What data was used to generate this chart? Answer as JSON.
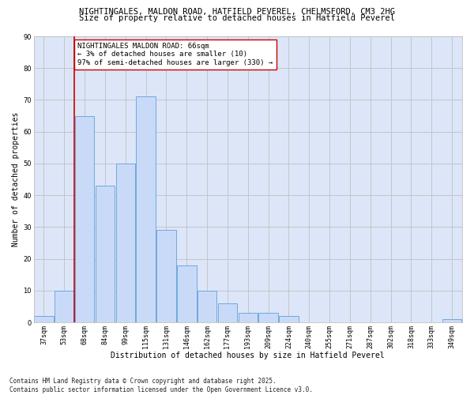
{
  "title_line1": "NIGHTINGALES, MALDON ROAD, HATFIELD PEVEREL, CHELMSFORD, CM3 2HG",
  "title_line2": "Size of property relative to detached houses in Hatfield Peverel",
  "xlabel": "Distribution of detached houses by size in Hatfield Peverel",
  "ylabel": "Number of detached properties",
  "categories": [
    "37sqm",
    "53sqm",
    "68sqm",
    "84sqm",
    "99sqm",
    "115sqm",
    "131sqm",
    "146sqm",
    "162sqm",
    "177sqm",
    "193sqm",
    "209sqm",
    "224sqm",
    "240sqm",
    "255sqm",
    "271sqm",
    "287sqm",
    "302sqm",
    "318sqm",
    "333sqm",
    "349sqm"
  ],
  "values": [
    2,
    10,
    65,
    43,
    50,
    71,
    29,
    18,
    10,
    6,
    3,
    3,
    2,
    0,
    0,
    0,
    0,
    0,
    0,
    0,
    1
  ],
  "bar_color": "#c9daf8",
  "bar_edge_color": "#6fa8dc",
  "vline_color": "#cc0000",
  "annotation_text": "NIGHTINGALES MALDON ROAD: 66sqm\n← 3% of detached houses are smaller (10)\n97% of semi-detached houses are larger (330) →",
  "annotation_box_color": "#ffffff",
  "annotation_box_edge": "#cc0000",
  "ylim": [
    0,
    90
  ],
  "yticks": [
    0,
    10,
    20,
    30,
    40,
    50,
    60,
    70,
    80,
    90
  ],
  "grid_color": "#c0c0c0",
  "bg_color": "#dce6f8",
  "footer_line1": "Contains HM Land Registry data © Crown copyright and database right 2025.",
  "footer_line2": "Contains public sector information licensed under the Open Government Licence v3.0.",
  "title_fontsize": 7.5,
  "subtitle_fontsize": 7.5,
  "axis_label_fontsize": 7,
  "tick_fontsize": 6,
  "annotation_fontsize": 6.5,
  "footer_fontsize": 5.5
}
